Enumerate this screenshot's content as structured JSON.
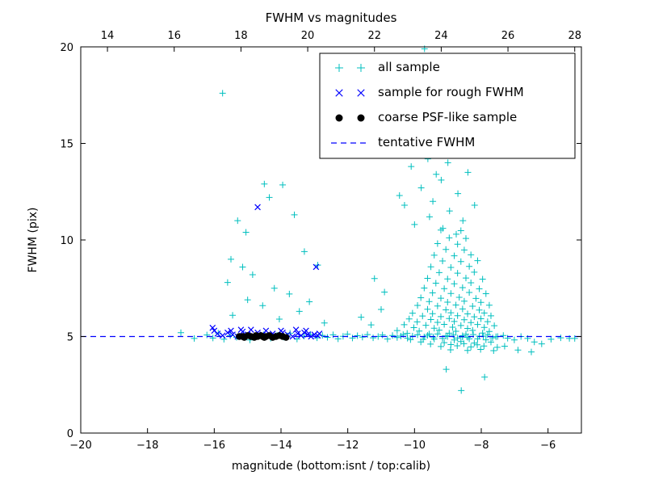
{
  "chart_data": {
    "type": "scatter",
    "title": "FWHM vs magnitudes",
    "xlabel": "magnitude (bottom:isnt / top:calib)",
    "ylabel": "FWHM (pix)",
    "xlim": [
      -20,
      -5
    ],
    "ylim": [
      0,
      20
    ],
    "x_ticks_bottom": [
      -20,
      -18,
      -16,
      -14,
      -12,
      -10,
      -8,
      -6
    ],
    "x_ticks_top": [
      14,
      16,
      18,
      20,
      22,
      24,
      26,
      28
    ],
    "top_axis_offset_from_bottom": 33.2,
    "y_ticks": [
      0,
      5,
      10,
      15,
      20
    ],
    "grid": false,
    "legend_position": "upper right",
    "series": [
      {
        "name": "all sample",
        "marker": "plus",
        "color": "#00bfbf",
        "points": [
          [
            -16.22,
            5.08
          ],
          [
            -16.04,
            4.92
          ],
          [
            -15.88,
            5.18
          ],
          [
            -15.71,
            4.86
          ],
          [
            -15.52,
            5.04
          ],
          [
            -15.33,
            4.96
          ],
          [
            -15.12,
            5.14
          ],
          [
            -14.93,
            4.82
          ],
          [
            -14.71,
            5.01
          ],
          [
            -14.52,
            5.09
          ],
          [
            -14.31,
            4.91
          ],
          [
            -14.12,
            5.06
          ],
          [
            -13.92,
            4.97
          ],
          [
            -13.73,
            5.17
          ],
          [
            -13.52,
            4.87
          ],
          [
            -13.31,
            5.02
          ],
          [
            -13.12,
            5.11
          ],
          [
            -12.92,
            4.93
          ],
          [
            -12.76,
            5.06
          ],
          [
            -12.61,
            4.96
          ],
          [
            -12.44,
            5.09
          ],
          [
            -12.29,
            4.88
          ],
          [
            -12.14,
            5.01
          ],
          [
            -12.01,
            5.12
          ],
          [
            -11.86,
            4.92
          ],
          [
            -11.71,
            5.04
          ],
          [
            -11.56,
            4.97
          ],
          [
            -11.41,
            5.1
          ],
          [
            -11.24,
            4.93
          ],
          [
            -11.09,
            5.0
          ],
          [
            -10.96,
            5.08
          ],
          [
            -10.81,
            4.87
          ],
          [
            -10.66,
            5.05
          ],
          [
            -10.52,
            4.95
          ],
          [
            -10.34,
            5.1
          ],
          [
            -10.21,
            4.91
          ],
          [
            -10.06,
            5.02
          ],
          [
            -9.91,
            5.09
          ],
          [
            -9.74,
            4.86
          ],
          [
            -9.61,
            5.06
          ],
          [
            -9.44,
            4.97
          ],
          [
            -9.31,
            5.13
          ],
          [
            -9.16,
            4.9
          ],
          [
            -9.01,
            5.0
          ],
          [
            -8.84,
            5.08
          ],
          [
            -8.71,
            4.92
          ],
          [
            -8.56,
            5.04
          ],
          [
            -8.41,
            4.96
          ],
          [
            -8.24,
            5.1
          ],
          [
            -8.11,
            4.88
          ],
          [
            -7.94,
            5.01
          ],
          [
            -7.81,
            5.09
          ],
          [
            -7.66,
            4.93
          ],
          [
            -7.51,
            5.0
          ],
          [
            -7.34,
            5.05
          ],
          [
            -7.21,
            4.91
          ],
          [
            -7.01,
            4.82
          ],
          [
            -6.81,
            5.0
          ],
          [
            -6.61,
            4.9
          ],
          [
            -6.41,
            4.72
          ],
          [
            -6.19,
            4.62
          ],
          [
            -5.91,
            4.86
          ],
          [
            -5.62,
            4.93
          ],
          [
            -5.36,
            4.9
          ],
          [
            -8.92,
            4.31
          ],
          [
            -8.41,
            4.28
          ],
          [
            -8.02,
            4.33
          ],
          [
            -7.63,
            4.27
          ],
          [
            -9.21,
            4.48
          ],
          [
            -8.72,
            4.52
          ],
          [
            -8.31,
            4.46
          ],
          [
            -7.92,
            4.51
          ],
          [
            -7.52,
            4.44
          ],
          [
            -9.52,
            4.61
          ],
          [
            -8.91,
            4.58
          ],
          [
            -8.52,
            4.63
          ],
          [
            -8.12,
            4.57
          ],
          [
            -9.81,
            4.72
          ],
          [
            -9.11,
            4.68
          ],
          [
            -8.61,
            4.74
          ],
          [
            -8.21,
            4.66
          ],
          [
            -7.71,
            4.71
          ],
          [
            -10.12,
            4.84
          ],
          [
            -9.41,
            4.87
          ],
          [
            -8.81,
            4.82
          ],
          [
            -8.36,
            4.88
          ],
          [
            -7.86,
            4.83
          ],
          [
            -10.41,
            5.02
          ],
          [
            -9.71,
            4.98
          ],
          [
            -9.06,
            5.03
          ],
          [
            -8.56,
            4.97
          ],
          [
            -8.06,
            5.01
          ],
          [
            -7.56,
            4.99
          ],
          [
            -10.22,
            5.16
          ],
          [
            -9.56,
            5.13
          ],
          [
            -8.96,
            5.17
          ],
          [
            -8.46,
            5.12
          ],
          [
            -7.96,
            5.18
          ],
          [
            -10.52,
            5.31
          ],
          [
            -9.86,
            5.28
          ],
          [
            -9.26,
            5.33
          ],
          [
            -8.76,
            5.27
          ],
          [
            -8.26,
            5.32
          ],
          [
            -7.76,
            5.26
          ],
          [
            -10.02,
            5.46
          ],
          [
            -9.41,
            5.43
          ],
          [
            -8.86,
            5.48
          ],
          [
            -8.41,
            5.42
          ],
          [
            -7.91,
            5.47
          ],
          [
            -10.31,
            5.61
          ],
          [
            -9.66,
            5.58
          ],
          [
            -9.11,
            5.63
          ],
          [
            -8.61,
            5.57
          ],
          [
            -8.11,
            5.62
          ],
          [
            -7.61,
            5.56
          ],
          [
            -9.92,
            5.76
          ],
          [
            -9.31,
            5.73
          ],
          [
            -8.81,
            5.78
          ],
          [
            -8.31,
            5.72
          ],
          [
            -7.81,
            5.77
          ],
          [
            -10.16,
            5.91
          ],
          [
            -9.51,
            5.88
          ],
          [
            -8.96,
            5.93
          ],
          [
            -8.51,
            5.87
          ],
          [
            -8.01,
            5.92
          ],
          [
            -9.76,
            6.06
          ],
          [
            -9.21,
            6.03
          ],
          [
            -8.71,
            6.08
          ],
          [
            -8.21,
            6.02
          ],
          [
            -7.71,
            6.07
          ],
          [
            -10.06,
            6.21
          ],
          [
            -9.46,
            6.18
          ],
          [
            -8.91,
            6.23
          ],
          [
            -8.41,
            6.17
          ],
          [
            -7.91,
            6.22
          ],
          [
            -9.61,
            6.41
          ],
          [
            -9.06,
            6.38
          ],
          [
            -8.56,
            6.43
          ],
          [
            -8.06,
            6.37
          ],
          [
            -9.91,
            6.61
          ],
          [
            -9.31,
            6.58
          ],
          [
            -8.76,
            6.63
          ],
          [
            -8.26,
            6.57
          ],
          [
            -7.76,
            6.62
          ],
          [
            -9.56,
            6.81
          ],
          [
            -9.01,
            6.78
          ],
          [
            -8.51,
            6.83
          ],
          [
            -8.01,
            6.77
          ],
          [
            -9.81,
            7.01
          ],
          [
            -9.21,
            6.98
          ],
          [
            -8.66,
            7.03
          ],
          [
            -8.16,
            6.97
          ],
          [
            -9.46,
            7.26
          ],
          [
            -8.91,
            7.23
          ],
          [
            -8.36,
            7.28
          ],
          [
            -7.86,
            7.22
          ],
          [
            -9.71,
            7.51
          ],
          [
            -9.11,
            7.48
          ],
          [
            -8.56,
            7.53
          ],
          [
            -8.06,
            7.47
          ],
          [
            -9.36,
            7.76
          ],
          [
            -8.81,
            7.73
          ],
          [
            -8.31,
            7.78
          ],
          [
            -9.61,
            8.01
          ],
          [
            -9.01,
            7.98
          ],
          [
            -8.46,
            8.03
          ],
          [
            -7.96,
            7.97
          ],
          [
            -9.26,
            8.31
          ],
          [
            -8.71,
            8.28
          ],
          [
            -8.21,
            8.33
          ],
          [
            -9.51,
            8.61
          ],
          [
            -8.91,
            8.58
          ],
          [
            -8.36,
            8.63
          ],
          [
            -9.16,
            8.91
          ],
          [
            -8.61,
            8.88
          ],
          [
            -8.11,
            8.93
          ],
          [
            -9.41,
            9.21
          ],
          [
            -8.81,
            9.18
          ],
          [
            -8.31,
            9.23
          ],
          [
            -9.06,
            9.51
          ],
          [
            -8.51,
            9.48
          ],
          [
            -9.31,
            9.81
          ],
          [
            -8.71,
            9.78
          ],
          [
            -8.96,
            10.11
          ],
          [
            -8.46,
            10.08
          ],
          [
            -9.21,
            10.51
          ],
          [
            -8.61,
            10.48
          ],
          [
            -9.7,
            19.9
          ],
          [
            -9.5,
            16.3
          ],
          [
            -9.9,
            15.6
          ],
          [
            -9.3,
            15.1
          ],
          [
            -8.6,
            15.3
          ],
          [
            -8.9,
            14.6
          ],
          [
            -9.6,
            14.2
          ],
          [
            -10.1,
            13.8
          ],
          [
            -8.4,
            13.5
          ],
          [
            -9.2,
            13.1
          ],
          [
            -9.8,
            12.7
          ],
          [
            -8.7,
            12.4
          ],
          [
            -9.45,
            12.0
          ],
          [
            -10.3,
            11.8
          ],
          [
            -8.95,
            11.5
          ],
          [
            -9.55,
            11.2
          ],
          [
            -8.55,
            11.0
          ],
          [
            -10.0,
            10.8
          ],
          [
            -9.15,
            10.6
          ],
          [
            -8.75,
            10.3
          ],
          [
            -10.45,
            12.3
          ],
          [
            -8.2,
            11.8
          ],
          [
            -9.0,
            14.0
          ],
          [
            -9.35,
            13.4
          ],
          [
            -10.2,
            14.9
          ],
          [
            -15.75,
            17.6
          ],
          [
            -14.5,
            12.9
          ],
          [
            -13.95,
            12.85
          ],
          [
            -15.3,
            11.0
          ],
          [
            -13.6,
            11.3
          ],
          [
            -15.05,
            10.4
          ],
          [
            -15.5,
            9.0
          ],
          [
            -15.15,
            8.6
          ],
          [
            -14.85,
            8.2
          ],
          [
            -13.3,
            9.4
          ],
          [
            -12.9,
            8.7
          ],
          [
            -15.6,
            7.8
          ],
          [
            -14.2,
            7.5
          ],
          [
            -13.75,
            7.2
          ],
          [
            -15.0,
            6.9
          ],
          [
            -14.55,
            6.6
          ],
          [
            -13.45,
            6.3
          ],
          [
            -15.45,
            6.1
          ],
          [
            -14.05,
            5.9
          ],
          [
            -12.7,
            5.7
          ],
          [
            -13.15,
            6.8
          ],
          [
            -14.35,
            12.2
          ],
          [
            -17.0,
            5.2
          ],
          [
            -16.6,
            4.9
          ],
          [
            -8.6,
            2.2
          ],
          [
            -9.05,
            3.3
          ],
          [
            -7.9,
            2.9
          ],
          [
            -6.9,
            4.3
          ],
          [
            -6.5,
            4.2
          ],
          [
            -7.3,
            4.5
          ],
          [
            -5.2,
            4.9
          ],
          [
            -11.3,
            5.6
          ],
          [
            -11.6,
            6.0
          ],
          [
            -11.0,
            6.4
          ],
          [
            -10.9,
            7.3
          ],
          [
            -11.2,
            8.0
          ]
        ]
      },
      {
        "name": "sample for rough FWHM",
        "marker": "x",
        "color": "#0000ff",
        "points": [
          [
            -16.0,
            5.3
          ],
          [
            -15.9,
            5.15
          ],
          [
            -15.75,
            5.05
          ],
          [
            -15.6,
            5.2
          ],
          [
            -15.45,
            5.1
          ],
          [
            -15.3,
            5.0
          ],
          [
            -15.15,
            5.25
          ],
          [
            -15.0,
            5.1
          ],
          [
            -14.85,
            5.05
          ],
          [
            -14.7,
            5.2
          ],
          [
            -14.55,
            5.1
          ],
          [
            -14.4,
            5.0
          ],
          [
            -14.25,
            5.15
          ],
          [
            -14.1,
            5.05
          ],
          [
            -13.95,
            5.2
          ],
          [
            -13.8,
            5.1
          ],
          [
            -13.65,
            5.0
          ],
          [
            -13.5,
            5.15
          ],
          [
            -13.4,
            5.05
          ],
          [
            -13.3,
            5.2
          ],
          [
            -13.2,
            5.1
          ],
          [
            -13.1,
            5.0
          ],
          [
            -13.0,
            5.1
          ],
          [
            -12.9,
            5.05
          ],
          [
            -14.7,
            11.7
          ],
          [
            -12.95,
            8.6
          ],
          [
            -16.05,
            5.45
          ],
          [
            -15.2,
            5.35
          ],
          [
            -14.0,
            5.3
          ],
          [
            -13.55,
            5.35
          ],
          [
            -14.45,
            5.3
          ],
          [
            -13.25,
            5.3
          ],
          [
            -12.85,
            5.15
          ],
          [
            -15.5,
            5.3
          ],
          [
            -14.9,
            5.35
          ]
        ]
      },
      {
        "name": "coarse PSF-like sample",
        "marker": "circle",
        "color": "#000000",
        "points": [
          [
            -15.25,
            5.0
          ],
          [
            -15.1,
            4.95
          ],
          [
            -15.0,
            5.05
          ],
          [
            -14.9,
            5.0
          ],
          [
            -14.8,
            4.95
          ],
          [
            -14.7,
            5.0
          ],
          [
            -14.6,
            5.05
          ],
          [
            -14.5,
            4.95
          ],
          [
            -14.45,
            5.0
          ],
          [
            -14.35,
            5.05
          ],
          [
            -14.25,
            4.95
          ],
          [
            -14.15,
            5.0
          ],
          [
            -14.05,
            5.05
          ],
          [
            -13.95,
            5.0
          ],
          [
            -13.85,
            4.95
          ],
          [
            -14.55,
            5.0
          ],
          [
            -14.75,
            5.05
          ],
          [
            -15.15,
            5.0
          ]
        ]
      }
    ],
    "reference_line": {
      "name": "tentative FWHM",
      "style": "dashed",
      "color": "#0000ff",
      "y": 5
    },
    "legend_entries": [
      "all sample",
      "sample for rough FWHM",
      "coarse PSF-like sample",
      "tentative FWHM"
    ]
  }
}
